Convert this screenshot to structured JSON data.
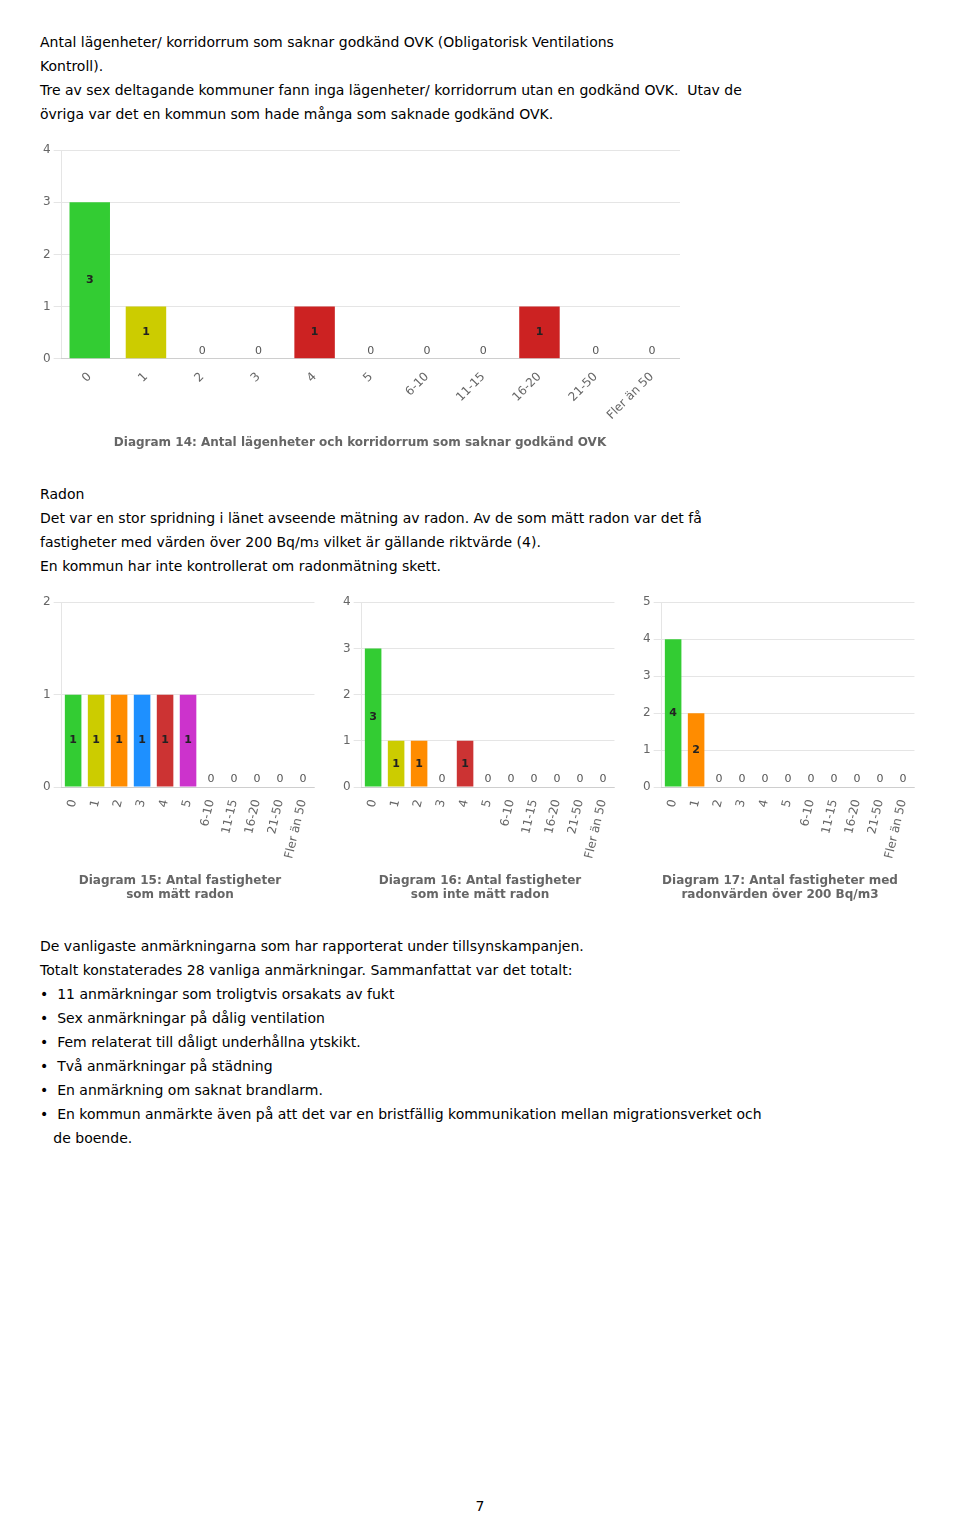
{
  "chart_data": [
    {
      "type": "bar",
      "title": "Diagram 14: Antal lägenheter och korridorrum som saknar godkänd OVK",
      "annotations": [
        "Antal lägenheter/ korridorrum som saknar godkänd OVK (Obligatorisk Ventilations",
        "Kontroll).",
        "Tre av sex deltagande kommuner fann inga lägenheter/ korridorrum utan en godkänd OVK.  Utav de",
        "övriga var det en kommun som hade många som saknade godkänd OVK."
      ],
      "categories": [
        "0",
        "1",
        "2",
        "3",
        "4",
        "5",
        "6-10",
        "11-15",
        "16-20",
        "21-50",
        "Fler än 50"
      ],
      "values": [
        3,
        1,
        0,
        0,
        1,
        0,
        0,
        0,
        1,
        0,
        0
      ],
      "colors": [
        "#33cc33",
        "#cccc00",
        "#b0b0b0",
        "#b0b0b0",
        "#cc2222",
        "#b0b0b0",
        "#b0b0b0",
        "#b0b0b0",
        "#cc2222",
        "#b0b0b0",
        "#b0b0b0"
      ],
      "ylim": [
        0,
        4
      ],
      "yticks": [
        0,
        1,
        2,
        3,
        4
      ],
      "grid": true,
      "data_labels": true
    },
    {
      "type": "bar",
      "title": [
        "Diagram 15: Antal fastigheter",
        "som mätt radon"
      ],
      "annotations": [
        "Radon",
        "Det var en stor spridning i länet avseende mätning av radon. Av de som mätt radon var det få",
        "fastigheter med värden över 200 Bq/m₃ vilket är gällande riktvärde (4).",
        "En kommun har inte kontrollerat om radonmätning skett."
      ],
      "categories": [
        "0",
        "1",
        "2",
        "3",
        "4",
        "5",
        "6-10",
        "11-15",
        "16-20",
        "21-50",
        "Fler än 50"
      ],
      "values": [
        1,
        1,
        1,
        1,
        1,
        1,
        0,
        0,
        0,
        0,
        0
      ],
      "colors": [
        "#33cc33",
        "#cccc00",
        "#ff8c00",
        "#1e90ff",
        "#cc3333",
        "#cc33cc",
        "#b0b0b0",
        "#b0b0b0",
        "#b0b0b0",
        "#b0b0b0",
        "#b0b0b0"
      ],
      "ylim": [
        0,
        2
      ],
      "yticks": [
        0,
        1,
        2
      ],
      "grid": true,
      "data_labels": true
    },
    {
      "type": "bar",
      "title": [
        "Diagram 16: Antal fastigheter",
        "som inte mätt radon"
      ],
      "categories": [
        "0",
        "1",
        "2",
        "3",
        "4",
        "5",
        "6-10",
        "11-15",
        "16-20",
        "21-50",
        "Fler än 50"
      ],
      "values": [
        3,
        1,
        1,
        0,
        1,
        0,
        0,
        0,
        0,
        0,
        0
      ],
      "colors": [
        "#33cc33",
        "#cccc00",
        "#ff8c00",
        "#b0b0b0",
        "#cc3333",
        "#b0b0b0",
        "#b0b0b0",
        "#b0b0b0",
        "#b0b0b0",
        "#b0b0b0",
        "#b0b0b0"
      ],
      "ylim": [
        0,
        4
      ],
      "yticks": [
        0,
        1,
        2,
        3,
        4
      ],
      "grid": true,
      "data_labels": true
    },
    {
      "type": "bar",
      "title": [
        "Diagram 17: Antal fastigheter med",
        "radonvärden över 200 Bq/m3"
      ],
      "categories": [
        "0",
        "1",
        "2",
        "3",
        "4",
        "5",
        "6-10",
        "11-15",
        "16-20",
        "21-50",
        "Fler än 50"
      ],
      "values": [
        4,
        2,
        0,
        0,
        0,
        0,
        0,
        0,
        0,
        0,
        0
      ],
      "colors": [
        "#33cc33",
        "#ff8c00",
        "#b0b0b0",
        "#b0b0b0",
        "#b0b0b0",
        "#b0b0b0",
        "#b0b0b0",
        "#b0b0b0",
        "#b0b0b0",
        "#b0b0b0",
        "#b0b0b0"
      ],
      "ylim": [
        0,
        5
      ],
      "yticks": [
        0,
        1,
        2,
        3,
        4,
        5
      ],
      "grid": true,
      "data_labels": true
    }
  ],
  "annotations": [
    "De vanligaste anmärkningarna som har rapporterat under tillsynskampanjen.",
    "Totalt konstaterades 28 vanliga anmärkningar. Sammanfattat var det totalt:",
    "•  11 anmärkningar som troligtvis orsakats av fukt",
    "•  Sex anmärkningar på dålig ventilation",
    "•  Fem relaterat till dåligt underhållna ytskikt.",
    "•  Två anmärkningar på städning",
    "•  En anmärkning om saknat brandlarm.",
    "•  En kommun anmärkte även på att det var en bristfällig kommunikation mellan migrationsverket och",
    "   de boende.",
    "7"
  ]
}
